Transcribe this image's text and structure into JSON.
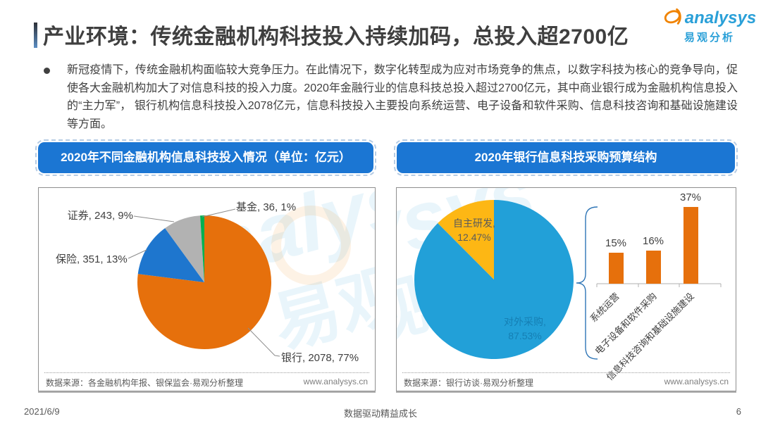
{
  "header": {
    "title": "产业环境：传统金融机构科技投入持续加码，总投入超2700亿",
    "logo_brand": "analysys",
    "logo_cn": "易观分析"
  },
  "intro": {
    "bullet_text": "新冠疫情下，传统金融机构面临较大竞争压力。在此情况下，数字化转型成为应对市场竞争的焦点，以数字科技为核心的竞争导向，促使各大金融机构加大了对信息科技的投入力度。2020年金融行业的信息科技总投入超过2700亿元，其中商业银行成为金融机构信息投入的“主力军”， 银行机构信息科技投入2078亿元，信息科技投入主要投向系统运营、电子设备和软件采购、信息科技咨询和基础设施建设等方面。"
  },
  "panels": {
    "left": {
      "banner": "2020年不同金融机构信息科技投入情况（单位：亿元）",
      "source": "数据来源：各金融机构年报、银保监会·易观分析整理",
      "website": "www.analysys.cn"
    },
    "right": {
      "banner": "2020年银行信息科技采购预算结构",
      "source": "数据来源：银行访谈·易观分析整理",
      "website": "www.analysys.cn"
    }
  },
  "footer": {
    "date": "2021/6/9",
    "slogan": "数据驱动精益成长",
    "page_number": "6"
  },
  "colors": {
    "banner_blue": "#1b76d3",
    "bar_orange": "#e6700c",
    "brand_blue": "#2aa0d8"
  },
  "chart_data": [
    {
      "type": "pie",
      "title": "2020年不同金融机构信息科技投入情况",
      "unit": "亿元",
      "start_angle_deg": 0,
      "clockwise": true,
      "series": [
        {
          "label": "银行",
          "value": 2078,
          "pct": 77,
          "color": "#e6700c",
          "display": "银行, 2078, 77%"
        },
        {
          "label": "保险",
          "value": 351,
          "pct": 13,
          "color": "#1e76ce",
          "display": "保险, 351, 13%"
        },
        {
          "label": "证券",
          "value": 243,
          "pct": 9,
          "color": "#b2b2b2",
          "display": "证券, 243, 9%"
        },
        {
          "label": "基金",
          "value": 36,
          "pct": 1,
          "color": "#00b050",
          "display": "基金, 36, 1%"
        }
      ]
    },
    {
      "type": "pie",
      "title": "2020年银行信息科技采购预算结构",
      "start_angle_deg": 0,
      "clockwise": true,
      "series": [
        {
          "label": "对外采购",
          "pct": 87.53,
          "color": "#22a0d8",
          "display_line1": "对外采购,",
          "display_line2": "87.53%"
        },
        {
          "label": "自主研发",
          "pct": 12.47,
          "color": "#fdb714",
          "display_line1": "自主研发,",
          "display_line2": "12.47%"
        }
      ]
    },
    {
      "type": "bar",
      "title": "银行信息科技采购预算分项占比",
      "categories": [
        "系统运营",
        "电子设备和软件采购",
        "信息科技咨询和基础设施建设"
      ],
      "values": [
        15,
        16,
        37
      ],
      "value_labels": [
        "15%",
        "16%",
        "37%"
      ],
      "unit": "%",
      "bar_color": "#e6700c",
      "ylim": [
        0,
        40
      ],
      "grid": false,
      "legend": false
    }
  ]
}
